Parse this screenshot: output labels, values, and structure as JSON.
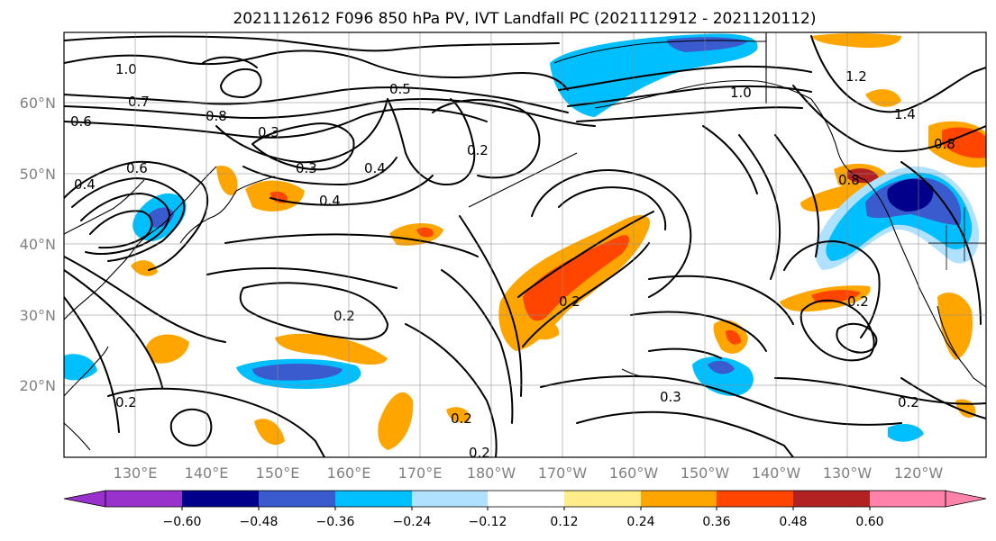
{
  "title": "2021112612 F096 850 hPa PV, IVT Landfall PC (2021112912 - 2021120112)",
  "map": {
    "lat_labels": [
      "60°N",
      "50°N",
      "40°N",
      "30°N",
      "20°N"
    ],
    "lon_labels": [
      "130°E",
      "140°E",
      "150°E",
      "160°E",
      "170°E",
      "180°W",
      "170°W",
      "160°W",
      "150°W",
      "140°W",
      "130°W",
      "120°W"
    ],
    "contour_labels": [
      "1.0",
      "0.7",
      "0.8",
      "0.6",
      "0.5",
      "0.3",
      "0.3",
      "0.4",
      "0.4",
      "0.6",
      "0.4",
      "0.2",
      "0.2",
      "0.2",
      "0.2",
      "0.2",
      "0.3",
      "0.2",
      "1.0",
      "1.2",
      "1.4",
      "0.8",
      "0.8",
      "0.2",
      "0.2"
    ]
  },
  "colorbar": {
    "tick_labels": [
      "−0.60",
      "−0.48",
      "−0.36",
      "−0.24",
      "−0.12",
      "0.12",
      "0.24",
      "0.36",
      "0.48",
      "0.60"
    ],
    "colors": [
      "#9932cc",
      "#00008b",
      "#3a5bcd",
      "#00bfff",
      "#b0e2ff",
      "#ffffff",
      "#ffec8b",
      "#ffa500",
      "#ff4500",
      "#b22222",
      "#ff82ab"
    ]
  }
}
